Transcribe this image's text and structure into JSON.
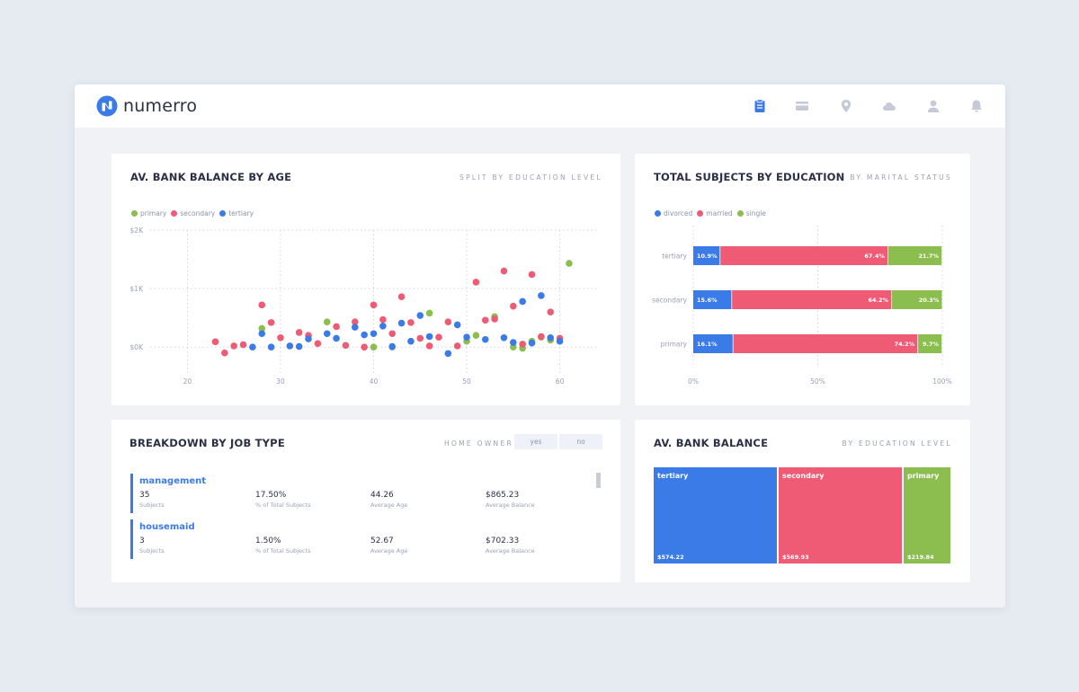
{
  "app": {
    "name": "numerro"
  },
  "nav_icons": [
    "clipboard-icon",
    "card-icon",
    "location-pin-icon",
    "cloud-icon",
    "user-icon",
    "bell-icon"
  ],
  "colors": {
    "primary": "#8bbd4f",
    "secondary": "#ef5a75",
    "tertiary": "#3b7be8",
    "divorced": "#3b7be8",
    "married": "#ef5a75",
    "single": "#8bbd4f",
    "active_nav": "#3b7be8",
    "inactive_nav": "#c5cad6"
  },
  "scatter": {
    "title": "AV. BANK BALANCE BY AGE",
    "subtitle": "SPLIT BY EDUCATION LEVEL",
    "legend": [
      "primary",
      "secondary",
      "tertiary"
    ]
  },
  "stacked": {
    "title": "TOTAL SUBJECTS BY EDUCATION",
    "subtitle": "BY MARITAL STATUS",
    "legend": [
      "divorced",
      "married",
      "single"
    ]
  },
  "jobs": {
    "title": "BREAKDOWN BY JOB TYPE",
    "filter_label": "HOME OWNER",
    "toggle_yes": "yes",
    "toggle_no": "no",
    "items": [
      {
        "name": "management",
        "subjects": "35",
        "subjects_label": "Subjects",
        "pct": "17.50%",
        "pct_label": "% of Total Subjects",
        "age": "44.26",
        "age_label": "Average Age",
        "balance": "$865.23",
        "balance_label": "Average Balance"
      },
      {
        "name": "housemaid",
        "subjects": "3",
        "subjects_label": "Subjects",
        "pct": "1.50%",
        "pct_label": "% of Total Subjects",
        "age": "52.67",
        "age_label": "Average Age",
        "balance": "$702.33",
        "balance_label": "Average Balance"
      }
    ]
  },
  "balance": {
    "title": "AV. BANK BALANCE",
    "subtitle": "BY EDUCATION LEVEL",
    "tiles": [
      {
        "name": "tertiary",
        "value": "$574.22",
        "amount": 574.22
      },
      {
        "name": "secondary",
        "value": "$569.93",
        "amount": 569.93
      },
      {
        "name": "primary",
        "value": "$219.84",
        "amount": 219.84
      }
    ]
  },
  "chart_data": [
    {
      "type": "scatter",
      "title": "AV. BANK BALANCE BY AGE",
      "subtitle": "SPLIT BY EDUCATION LEVEL",
      "xlabel": "",
      "ylabel": "",
      "xlim": [
        16,
        64
      ],
      "ylim": [
        -350,
        2000
      ],
      "x_ticks": [
        20,
        30,
        40,
        50,
        60
      ],
      "y_ticks": [
        {
          "value": 0,
          "label": "$0K"
        },
        {
          "value": 1000,
          "label": "$1K"
        },
        {
          "value": 2000,
          "label": "$2K"
        }
      ],
      "grid": true,
      "legend_position": "top-left",
      "series": [
        {
          "name": "primary",
          "points": [
            [
              28,
              320
            ],
            [
              35,
              430
            ],
            [
              40,
              0
            ],
            [
              42,
              0
            ],
            [
              46,
              580
            ],
            [
              50,
              100
            ],
            [
              51,
              200
            ],
            [
              53,
              520
            ],
            [
              55,
              0
            ],
            [
              56,
              -20
            ],
            [
              57,
              100
            ],
            [
              58,
              170
            ],
            [
              59,
              120
            ],
            [
              61,
              1430
            ]
          ]
        },
        {
          "name": "secondary",
          "points": [
            [
              23,
              90
            ],
            [
              24,
              -100
            ],
            [
              25,
              20
            ],
            [
              26,
              40
            ],
            [
              28,
              720
            ],
            [
              29,
              420
            ],
            [
              30,
              160
            ],
            [
              32,
              250
            ],
            [
              33,
              200
            ],
            [
              34,
              60
            ],
            [
              36,
              350
            ],
            [
              37,
              30
            ],
            [
              38,
              430
            ],
            [
              39,
              0
            ],
            [
              40,
              720
            ],
            [
              41,
              470
            ],
            [
              42,
              230
            ],
            [
              43,
              860
            ],
            [
              44,
              420
            ],
            [
              45,
              150
            ],
            [
              46,
              20
            ],
            [
              47,
              170
            ],
            [
              48,
              430
            ],
            [
              49,
              20
            ],
            [
              51,
              1110
            ],
            [
              52,
              460
            ],
            [
              53,
              480
            ],
            [
              54,
              1300
            ],
            [
              55,
              700
            ],
            [
              56,
              50
            ],
            [
              57,
              1240
            ],
            [
              58,
              180
            ],
            [
              59,
              600
            ],
            [
              60,
              150
            ]
          ]
        },
        {
          "name": "tertiary",
          "points": [
            [
              27,
              0
            ],
            [
              28,
              230
            ],
            [
              29,
              0
            ],
            [
              31,
              20
            ],
            [
              32,
              10
            ],
            [
              33,
              140
            ],
            [
              35,
              230
            ],
            [
              36,
              150
            ],
            [
              38,
              340
            ],
            [
              39,
              210
            ],
            [
              40,
              230
            ],
            [
              41,
              360
            ],
            [
              42,
              10
            ],
            [
              43,
              410
            ],
            [
              44,
              100
            ],
            [
              45,
              540
            ],
            [
              46,
              180
            ],
            [
              48,
              -110
            ],
            [
              49,
              380
            ],
            [
              50,
              170
            ],
            [
              52,
              130
            ],
            [
              54,
              160
            ],
            [
              55,
              80
            ],
            [
              56,
              780
            ],
            [
              57,
              70
            ],
            [
              58,
              880
            ],
            [
              59,
              160
            ],
            [
              60,
              100
            ]
          ]
        }
      ]
    },
    {
      "type": "bar",
      "orientation": "horizontal",
      "stacked": true,
      "title": "TOTAL SUBJECTS BY EDUCATION",
      "subtitle": "BY MARITAL STATUS",
      "categories": [
        "tertiary",
        "secondary",
        "primary"
      ],
      "x_ticks": [
        "0%",
        "50%",
        "100%"
      ],
      "xlim": [
        0,
        100
      ],
      "legend_position": "top-left",
      "series": [
        {
          "name": "divorced",
          "values": [
            10.9,
            15.6,
            16.1
          ],
          "labels": [
            "10.9%",
            "15.6%",
            "16.1%"
          ]
        },
        {
          "name": "married",
          "values": [
            67.4,
            64.2,
            74.2
          ],
          "labels": [
            "67.4%",
            "64.2%",
            "74.2%"
          ]
        },
        {
          "name": "single",
          "values": [
            21.7,
            20.3,
            9.7
          ],
          "labels": [
            "21.7%",
            "20.3%",
            "9.7%"
          ]
        }
      ]
    },
    {
      "type": "treemap",
      "title": "AV. BANK BALANCE",
      "subtitle": "BY EDUCATION LEVEL",
      "categories": [
        "tertiary",
        "secondary",
        "primary"
      ],
      "values": [
        574.22,
        569.93,
        219.84
      ],
      "labels": [
        "$574.22",
        "$569.93",
        "$219.84"
      ]
    }
  ]
}
